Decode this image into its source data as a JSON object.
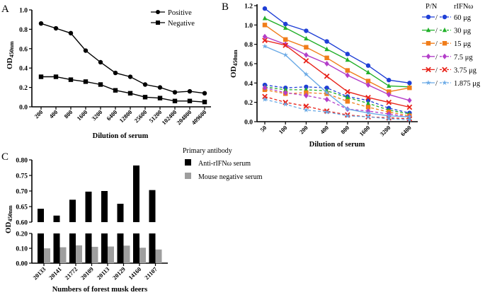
{
  "panels": [
    {
      "id": "A",
      "title": "A",
      "type": "line",
      "xlabel": "Dilution of serum",
      "ylabel": "OD",
      "ylabel_sub": "450nm",
      "ylim": [
        0,
        1.0
      ],
      "yticks": [
        "0.0",
        "0.2",
        "0.4",
        "0.6",
        "0.8",
        "1.0"
      ],
      "categories": [
        "200",
        "400",
        "800",
        "1600",
        "3200",
        "6400",
        "12800",
        "25600",
        "51200",
        "102400",
        "204800",
        "409600"
      ],
      "series": [
        {
          "name": "Positive",
          "marker": "circle",
          "values": [
            0.86,
            0.81,
            0.76,
            0.58,
            0.46,
            0.35,
            0.31,
            0.23,
            0.2,
            0.15,
            0.16,
            0.14
          ]
        },
        {
          "name": "Negative",
          "marker": "square",
          "values": [
            0.31,
            0.31,
            0.28,
            0.26,
            0.23,
            0.17,
            0.14,
            0.1,
            0.09,
            0.06,
            0.06,
            0.05
          ]
        }
      ]
    },
    {
      "id": "B",
      "title": "B",
      "type": "line",
      "xlabel": "Dilution of serum",
      "ylabel": "OD",
      "ylabel_sub": "450nm",
      "ylim": [
        0,
        1.2
      ],
      "yticks": [
        "0.0",
        "0.2",
        "0.4",
        "0.6",
        "0.8",
        "1.0",
        "1.2"
      ],
      "categories": [
        "50",
        "100",
        "200",
        "400",
        "800",
        "1600",
        "3200",
        "6400"
      ],
      "legend_header_pn": "P/N",
      "legend_header_dose": "rIFNω",
      "legend_sep": "/",
      "series": [
        {
          "name": "60 μg",
          "color": "#1f3fd6",
          "marker": "circle",
          "pos": [
            1.17,
            1.01,
            0.94,
            0.83,
            0.7,
            0.58,
            0.43,
            0.4
          ],
          "neg": [
            0.38,
            0.35,
            0.36,
            0.35,
            0.26,
            0.22,
            0.14,
            0.09
          ]
        },
        {
          "name": "30 μg",
          "color": "#22b02a",
          "marker": "triangle",
          "pos": [
            1.07,
            0.97,
            0.86,
            0.75,
            0.64,
            0.51,
            0.37,
            0.36
          ],
          "neg": [
            0.36,
            0.33,
            0.33,
            0.32,
            0.25,
            0.19,
            0.12,
            0.08
          ]
        },
        {
          "name": "15 μg",
          "color": "#f07d1a",
          "marker": "square",
          "pos": [
            1.0,
            0.85,
            0.77,
            0.66,
            0.53,
            0.42,
            0.31,
            0.35
          ],
          "neg": [
            0.33,
            0.29,
            0.3,
            0.29,
            0.21,
            0.15,
            0.1,
            0.06
          ]
        },
        {
          "name": "7.5 μg",
          "color": "#b33ec9",
          "marker": "diamond",
          "pos": [
            0.88,
            0.8,
            0.69,
            0.6,
            0.48,
            0.38,
            0.28,
            0.22
          ],
          "neg": [
            0.35,
            0.3,
            0.27,
            0.23,
            0.13,
            0.11,
            0.08,
            0.05
          ]
        },
        {
          "name": "3.75 μg",
          "color": "#e8231a",
          "marker": "x",
          "pos": [
            0.84,
            0.79,
            0.63,
            0.47,
            0.31,
            0.25,
            0.2,
            0.15
          ],
          "neg": [
            0.26,
            0.2,
            0.16,
            0.11,
            0.07,
            0.05,
            0.04,
            0.03
          ]
        },
        {
          "name": "1.875 μg",
          "color": "#6aaae6",
          "marker": "star",
          "pos": [
            0.78,
            0.69,
            0.49,
            0.3,
            0.13,
            0.09,
            0.06,
            0.05
          ],
          "neg": [
            0.23,
            0.18,
            0.12,
            0.1,
            0.06,
            0.05,
            0.03,
            0.02
          ]
        }
      ]
    },
    {
      "id": "C",
      "title": "C",
      "type": "bar",
      "xlabel": "Numbers of forest musk deers",
      "ylabel": "OD",
      "ylabel_sub": "450nm",
      "yticks_top": [
        "0.60",
        "0.65",
        "0.70",
        "0.75",
        "0.80"
      ],
      "yticks_bottom": [
        "0.00",
        "0.10",
        "0.20"
      ],
      "ylim_top": [
        0.6,
        0.8
      ],
      "ylim_bottom": [
        0.0,
        0.2
      ],
      "legend_title": "Primary antibody",
      "categories": [
        "20133",
        "20141",
        "21772",
        "20109",
        "20113",
        "20129",
        "14160",
        "21107"
      ],
      "series": [
        {
          "name": "Anti-rIFNω serum",
          "color": "#000000",
          "values": [
            0.643,
            0.621,
            0.672,
            0.698,
            0.7,
            0.659,
            0.782,
            0.703
          ]
        },
        {
          "name": "Mouse negative serum",
          "color": "#9e9e9e",
          "values": [
            0.1,
            0.107,
            0.12,
            0.11,
            0.112,
            0.118,
            0.104,
            0.092
          ]
        }
      ]
    }
  ]
}
